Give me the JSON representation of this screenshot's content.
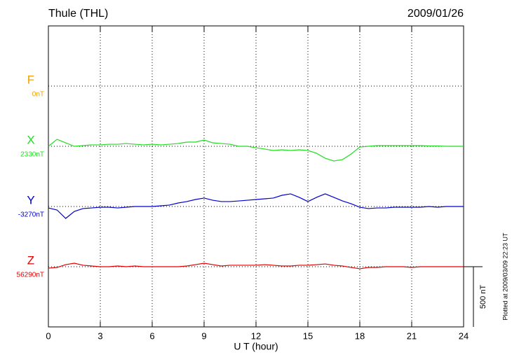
{
  "chart_data": {
    "type": "magnetogram",
    "title": "Thule (THL)",
    "date": "2009/01/26",
    "x_label": "U T (hour)",
    "plotted_note": "Plotted at 2009/03/09 22:23 UT",
    "xlim": [
      0,
      24
    ],
    "xticks": [
      0,
      3,
      6,
      9,
      12,
      15,
      18,
      21,
      24
    ],
    "scale_bar": {
      "value": 500,
      "label": "500 nT"
    },
    "grid": true,
    "x": [
      0,
      0.5,
      1,
      1.5,
      2,
      2.5,
      3,
      3.5,
      4,
      4.5,
      5,
      5.5,
      6,
      6.5,
      7,
      7.5,
      8,
      8.5,
      9,
      9.5,
      10,
      10.5,
      11,
      11.5,
      12,
      12.5,
      13,
      13.5,
      14,
      14.5,
      15,
      15.5,
      16,
      16.5,
      17,
      17.5,
      18,
      18.5,
      19,
      19.5,
      20,
      20.5,
      21,
      21.5,
      22,
      22.5,
      23,
      23.5,
      24
    ],
    "series": [
      {
        "name": "F",
        "color": "#f0a000",
        "baseline": 0,
        "baseline_label": "0nT",
        "values": [
          null,
          null,
          null,
          null,
          null,
          null,
          null,
          null,
          null,
          null,
          null,
          null,
          null,
          null,
          null,
          null,
          null,
          null,
          null,
          null,
          null,
          null,
          null,
          null,
          null,
          null,
          null,
          null,
          null,
          null,
          null,
          null,
          null,
          null,
          null,
          null,
          null,
          null,
          null,
          null,
          null,
          null,
          null,
          null,
          null,
          null,
          null,
          null,
          null
        ]
      },
      {
        "name": "X",
        "color": "#22dd22",
        "baseline": 2330,
        "baseline_label": "2330nT",
        "values": [
          2330,
          2388,
          2359,
          2330,
          2336,
          2342,
          2342,
          2347,
          2347,
          2353,
          2347,
          2342,
          2347,
          2342,
          2347,
          2353,
          2365,
          2365,
          2382,
          2359,
          2353,
          2347,
          2330,
          2330,
          2318,
          2307,
          2295,
          2301,
          2295,
          2301,
          2295,
          2272,
          2231,
          2208,
          2220,
          2266,
          2324,
          2330,
          2336,
          2336,
          2336,
          2336,
          2336,
          2336,
          2333,
          2333,
          2330,
          2330,
          2330
        ]
      },
      {
        "name": "Y",
        "color": "#0000d0",
        "baseline": -3270,
        "baseline_label": "-3270nT",
        "values": [
          -3282,
          -3299,
          -3369,
          -3311,
          -3287,
          -3282,
          -3276,
          -3276,
          -3282,
          -3276,
          -3270,
          -3270,
          -3270,
          -3264,
          -3258,
          -3241,
          -3229,
          -3212,
          -3200,
          -3218,
          -3229,
          -3229,
          -3224,
          -3218,
          -3212,
          -3206,
          -3200,
          -3177,
          -3165,
          -3194,
          -3229,
          -3194,
          -3165,
          -3194,
          -3224,
          -3247,
          -3276,
          -3287,
          -3282,
          -3282,
          -3276,
          -3276,
          -3276,
          -3276,
          -3270,
          -3276,
          -3270,
          -3270,
          -3270
        ]
      },
      {
        "name": "Z",
        "color": "#e00000",
        "baseline": 56290,
        "baseline_label": "56290nT",
        "values": [
          56278,
          56284,
          56307,
          56319,
          56302,
          56296,
          56290,
          56290,
          56296,
          56290,
          56296,
          56290,
          56290,
          56290,
          56290,
          56290,
          56296,
          56307,
          56319,
          56307,
          56296,
          56302,
          56302,
          56302,
          56302,
          56307,
          56302,
          56296,
          56296,
          56302,
          56302,
          56307,
          56313,
          56302,
          56296,
          56284,
          56273,
          56284,
          56284,
          56290,
          56290,
          56290,
          56284,
          56290,
          56290,
          56290,
          56290,
          56290,
          56290
        ]
      }
    ]
  }
}
